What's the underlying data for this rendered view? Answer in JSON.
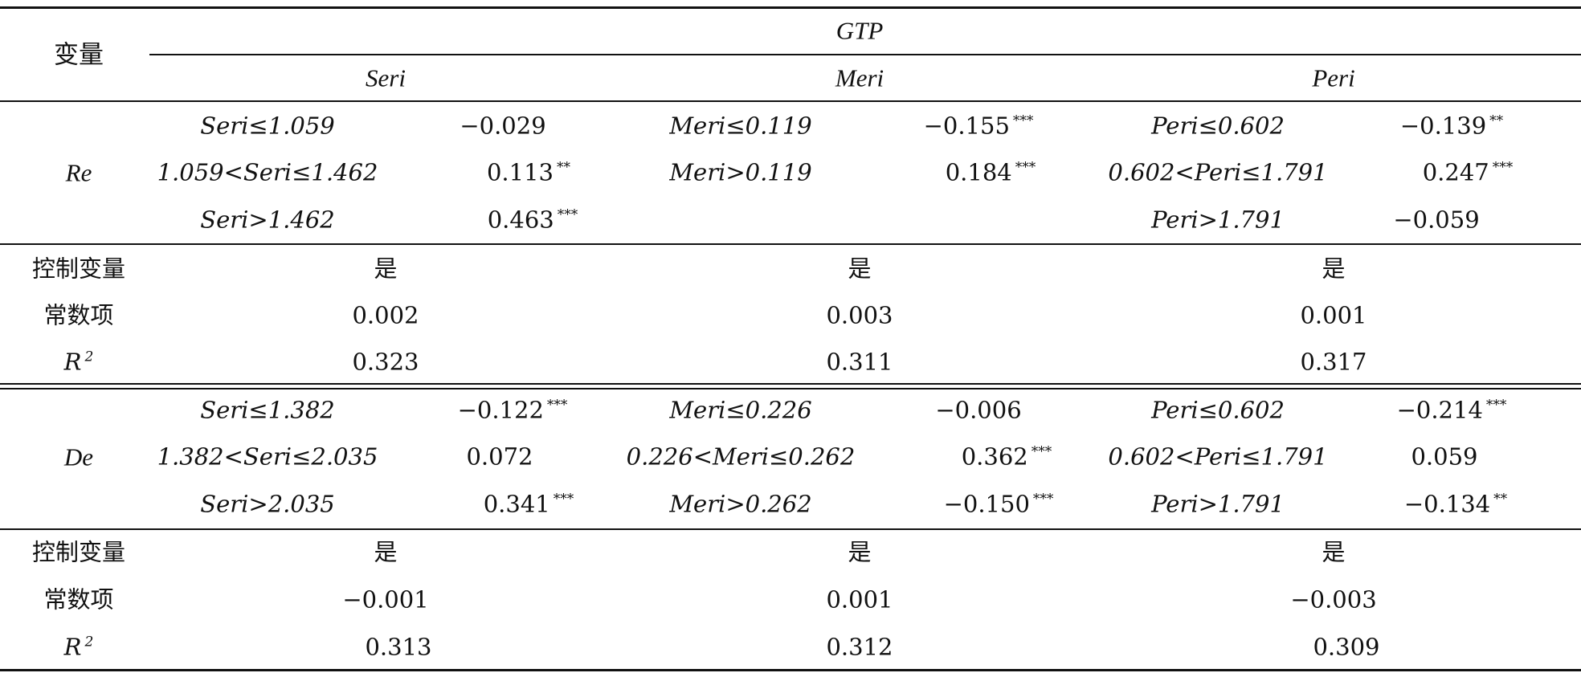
{
  "table": {
    "var_header": "变量",
    "gtp_header": "GTP",
    "group_headers": [
      "Seri",
      "Meri",
      "Peri"
    ],
    "sections": [
      {
        "var": "Re",
        "rows": [
          [
            "Seri≤1.059",
            "−0.029",
            "",
            "Meri≤0.119",
            "−0.155",
            "***",
            "Peri≤0.602",
            "−0.139",
            "**"
          ],
          [
            "1.059<Seri≤1.462",
            "0.113",
            "**",
            "Meri>0.119",
            "0.184",
            "***",
            "0.602<Peri≤1.791",
            "0.247",
            "***"
          ],
          [
            "Seri>1.462",
            "0.463",
            "***",
            "",
            "",
            "",
            "Peri>1.791",
            "−0.059",
            ""
          ]
        ],
        "controls": {
          "label": "控制变量",
          "values": [
            "是",
            "是",
            "是"
          ]
        },
        "constant": {
          "label": "常数项",
          "values": [
            "0.002",
            "0.003",
            "0.001"
          ]
        },
        "r2": {
          "label": "R",
          "sup": "2",
          "values": [
            "0.323",
            "0.311",
            "0.317"
          ]
        }
      },
      {
        "var": "De",
        "rows": [
          [
            "Seri≤1.382",
            "−0.122",
            "***",
            "Meri≤0.226",
            "−0.006",
            "",
            "Peri≤0.602",
            "−0.214",
            "***"
          ],
          [
            "1.382<Seri≤2.035",
            "0.072",
            "",
            "0.226<Meri≤0.262",
            "0.362",
            "***",
            "0.602<Peri≤1.791",
            "0.059",
            ""
          ],
          [
            "Seri>2.035",
            "0.341",
            "***",
            "Meri>0.262",
            "−0.150",
            "***",
            "Peri>1.791",
            "−0.134",
            "**"
          ]
        ],
        "controls": {
          "label": "控制变量",
          "values": [
            "是",
            "是",
            "是"
          ]
        },
        "constant": {
          "label": "常数项",
          "values": [
            "−0.001",
            "0.001",
            "−0.003"
          ]
        },
        "r2": {
          "label": "R",
          "sup": "2",
          "values": [
            "0.313",
            "0.312",
            "0.309"
          ]
        }
      }
    ]
  }
}
